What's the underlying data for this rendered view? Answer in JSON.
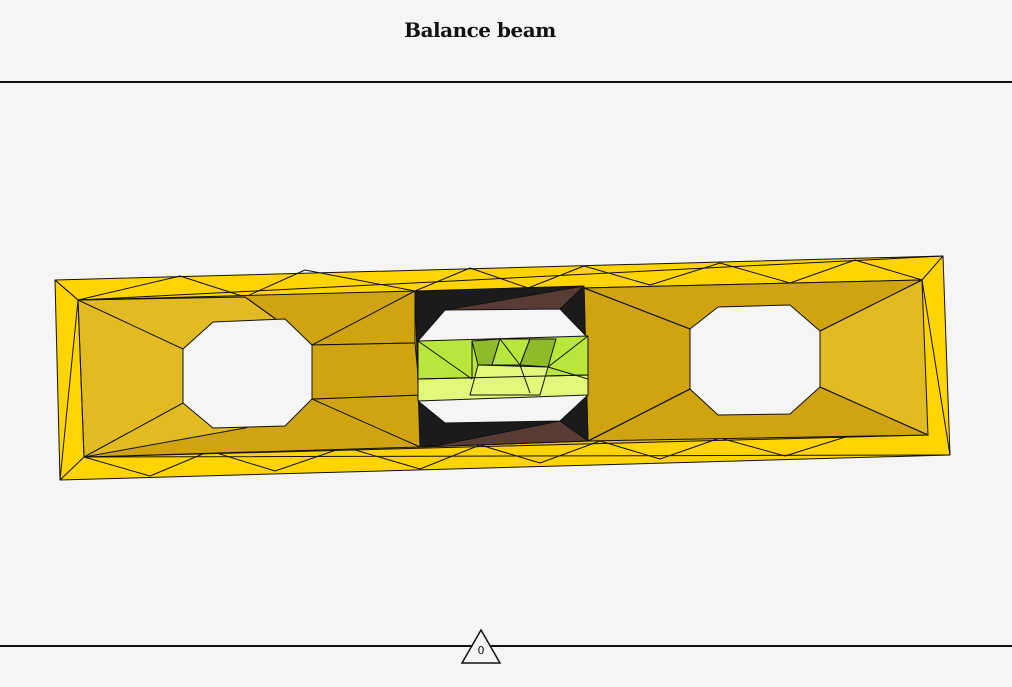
{
  "header": {
    "title": "Balance beam"
  },
  "level": {
    "name": "spirit-level",
    "tilt_degrees": -1.3,
    "colors": {
      "body_light": "#ffd400",
      "body_mid": "#e2bb23",
      "body_dark": "#cfa410",
      "vial_frame": "#1b1b1b",
      "vial_brown": "#5a3c36",
      "bubble_light": "#e2f87a",
      "bubble_mid": "#b8e63c",
      "bubble_dark": "#8fbb2a",
      "outline": "#111111"
    }
  },
  "footer": {
    "counter_value": "0",
    "counter_icon": "triangle-icon"
  }
}
